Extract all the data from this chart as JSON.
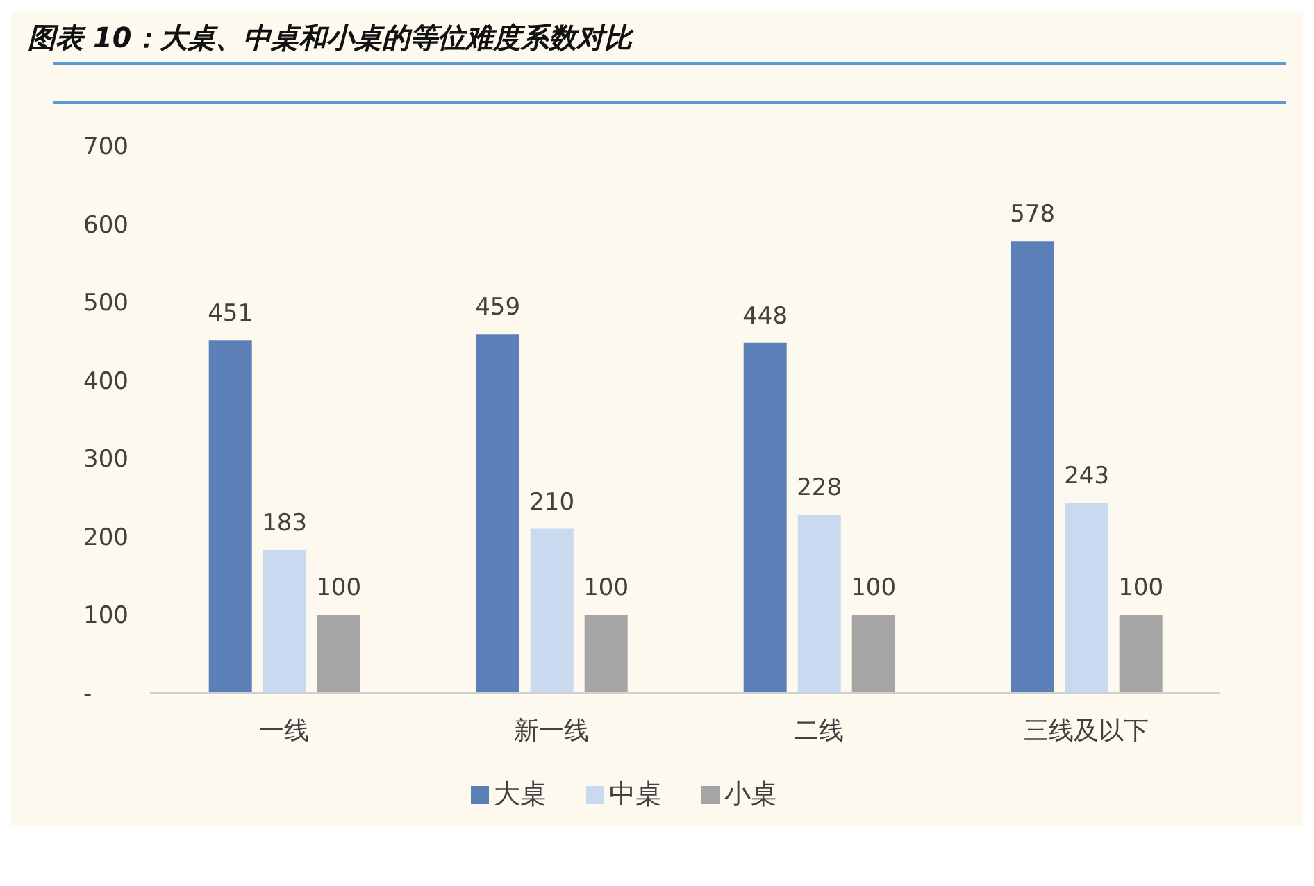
{
  "chart_data": {
    "type": "bar",
    "title": "图表 10：大桌、中桌和小桌的等位难度系数对比",
    "categories": [
      "一线",
      "新一线",
      "二线",
      "三线及以下"
    ],
    "series": [
      {
        "name": "大桌",
        "color": "#5b80b8",
        "values": [
          451,
          459,
          448,
          578
        ]
      },
      {
        "name": "中桌",
        "color": "#c9daf0",
        "values": [
          183,
          210,
          228,
          243
        ]
      },
      {
        "name": "小桌",
        "color": "#a5a5a5",
        "values": [
          100,
          100,
          100,
          100
        ]
      }
    ],
    "ylim": [
      0,
      700
    ],
    "yticks": [
      {
        "value": 0,
        "label": "-"
      },
      100,
      200,
      300,
      400,
      500,
      600,
      700
    ],
    "data_labels": true,
    "legend": "bottom",
    "grid": false
  }
}
